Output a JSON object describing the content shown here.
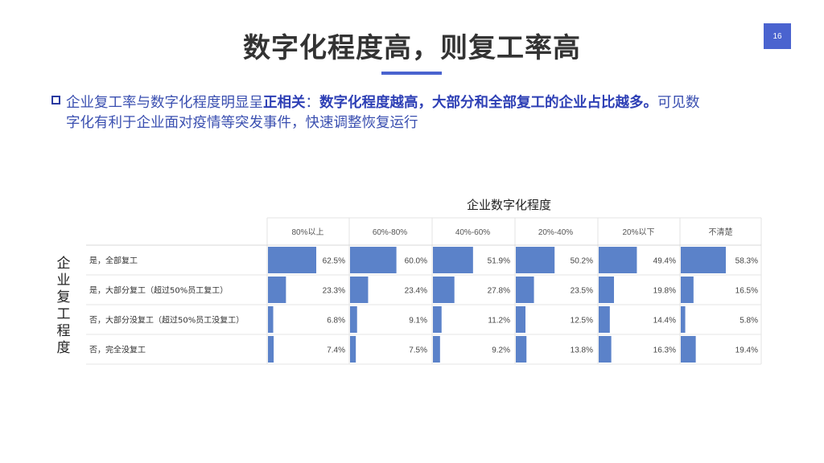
{
  "slide": {
    "title": "数字化程度高，则复工率高",
    "page_number": "16",
    "bullet_prefix": "企业复工率与数字化程度明显呈",
    "bullet_bold1": "正相关",
    "bullet_mid": "：",
    "bullet_bold2": "数字化程度越高，大部分和全部复工的企业占比越多。",
    "bullet_suffix": "可见数",
    "bullet_line2": "字化有利于企业面对疫情等突发事件，快速调整恢复运行"
  },
  "colors": {
    "accent": "#4a63cf",
    "bar": "#5b82c9",
    "text_blue": "#3a4fb0"
  },
  "chart_data": {
    "type": "table",
    "title": "企业数字化程度",
    "ylabel": "企业复工程度",
    "columns": [
      "80%以上",
      "60%-80%",
      "40%-60%",
      "20%-40%",
      "20%以下",
      "不清楚"
    ],
    "rows": [
      {
        "label": "是，全部复工",
        "values": [
          62.5,
          60.0,
          51.9,
          50.2,
          49.4,
          58.3
        ],
        "display": [
          "62.5%",
          "60.0%",
          "51.9%",
          "50.2%",
          "49.4%",
          "58.3%"
        ]
      },
      {
        "label": "是，大部分复工（超过50%员工复工）",
        "values": [
          23.3,
          23.4,
          27.8,
          23.5,
          19.8,
          16.5
        ],
        "display": [
          "23.3%",
          "23.4%",
          "27.8%",
          "23.5%",
          "19.8%",
          "16.5%"
        ]
      },
      {
        "label": "否，大部分没复工（超过50%员工没复工）",
        "values": [
          6.8,
          9.1,
          11.2,
          12.5,
          14.4,
          5.8
        ],
        "display": [
          "6.8%",
          "9.1%",
          "11.2%",
          "12.5%",
          "14.4%",
          "5.8%"
        ]
      },
      {
        "label": "否，完全没复工",
        "values": [
          7.4,
          7.5,
          9.2,
          13.8,
          16.3,
          19.4
        ],
        "display": [
          "7.4%",
          "7.5%",
          "9.2%",
          "13.8%",
          "16.3%",
          "19.4%"
        ]
      }
    ],
    "value_max": 100
  }
}
